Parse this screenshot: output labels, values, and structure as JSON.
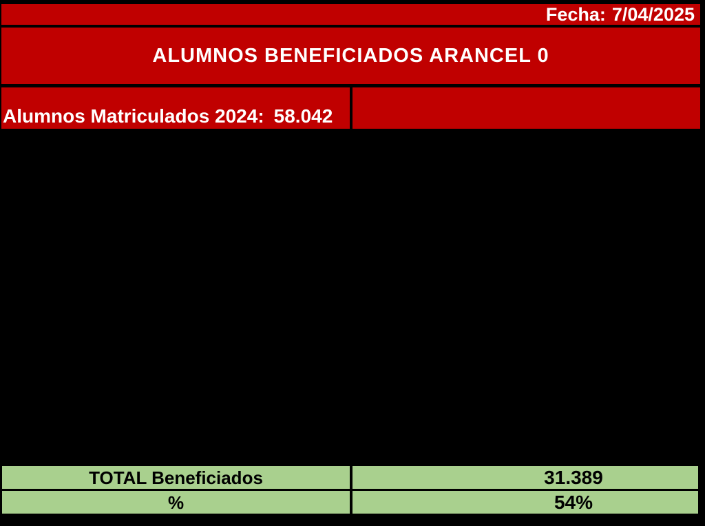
{
  "colors": {
    "table_red": "#c00000",
    "table_green": "#a9d08e",
    "background": "#000000",
    "text_on_red": "#ffffff",
    "text_on_green": "#000000"
  },
  "header": {
    "date_label": "Fecha:",
    "date_value": "7/04/2025",
    "title": "ALUMNOS BENEFICIADOS ARANCEL 0",
    "enrolled_label": "Alumnos Matriculados 2024:",
    "enrolled_value": "58.042"
  },
  "summary": {
    "rows": [
      {
        "label": "TOTAL Beneficiados",
        "value": "31.389"
      },
      {
        "label": "%",
        "value": "54%"
      }
    ]
  }
}
